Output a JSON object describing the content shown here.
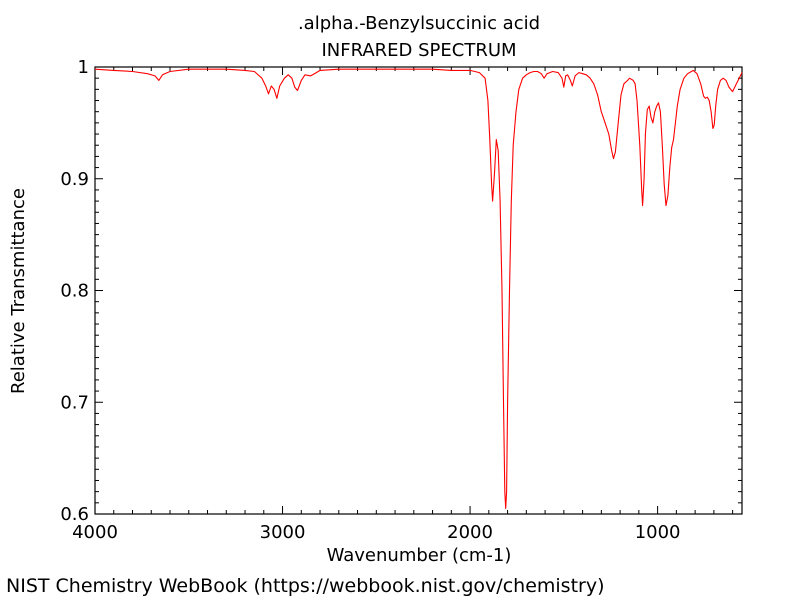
{
  "chart_data": {
    "type": "line",
    "title": ".alpha.-Benzylsuccinic acid",
    "subtitle": "INFRARED SPECTRUM",
    "xlabel": "Wavenumber (cm-1)",
    "ylabel": "Relative Transmittance",
    "xlim": [
      4000,
      550
    ],
    "ylim": [
      0.6,
      1.0
    ],
    "x_inverted": true,
    "xticks": [
      4000,
      3000,
      2000,
      1000
    ],
    "xtick_labels": [
      "4000",
      "3000",
      "2000",
      "1000"
    ],
    "yticks": [
      0.6,
      0.7,
      0.8,
      0.9,
      1.0
    ],
    "ytick_labels": [
      "0.6",
      "0.7",
      "0.8",
      "0.9",
      "1"
    ],
    "grid": false,
    "line_color": "#ff0000",
    "series": [
      {
        "points": [
          [
            4000,
            0.998
          ],
          [
            3900,
            0.997
          ],
          [
            3800,
            0.996
          ],
          [
            3720,
            0.994
          ],
          [
            3680,
            0.992
          ],
          [
            3660,
            0.988
          ],
          [
            3640,
            0.993
          ],
          [
            3600,
            0.996
          ],
          [
            3500,
            0.998
          ],
          [
            3400,
            0.998
          ],
          [
            3300,
            0.998
          ],
          [
            3200,
            0.997
          ],
          [
            3150,
            0.996
          ],
          [
            3110,
            0.99
          ],
          [
            3090,
            0.983
          ],
          [
            3075,
            0.976
          ],
          [
            3060,
            0.983
          ],
          [
            3045,
            0.98
          ],
          [
            3030,
            0.972
          ],
          [
            3015,
            0.983
          ],
          [
            2990,
            0.99
          ],
          [
            2970,
            0.993
          ],
          [
            2950,
            0.99
          ],
          [
            2935,
            0.982
          ],
          [
            2920,
            0.979
          ],
          [
            2900,
            0.988
          ],
          [
            2880,
            0.993
          ],
          [
            2850,
            0.992
          ],
          [
            2820,
            0.995
          ],
          [
            2800,
            0.997
          ],
          [
            2700,
            0.998
          ],
          [
            2600,
            0.998
          ],
          [
            2500,
            0.998
          ],
          [
            2400,
            0.998
          ],
          [
            2300,
            0.998
          ],
          [
            2200,
            0.998
          ],
          [
            2100,
            0.997
          ],
          [
            2000,
            0.997
          ],
          [
            1950,
            0.995
          ],
          [
            1920,
            0.99
          ],
          [
            1905,
            0.97
          ],
          [
            1895,
            0.935
          ],
          [
            1885,
            0.895
          ],
          [
            1880,
            0.88
          ],
          [
            1870,
            0.905
          ],
          [
            1860,
            0.935
          ],
          [
            1850,
            0.925
          ],
          [
            1840,
            0.88
          ],
          [
            1830,
            0.8
          ],
          [
            1822,
            0.7
          ],
          [
            1815,
            0.62
          ],
          [
            1810,
            0.605
          ],
          [
            1805,
            0.62
          ],
          [
            1800,
            0.7
          ],
          [
            1790,
            0.8
          ],
          [
            1780,
            0.88
          ],
          [
            1770,
            0.93
          ],
          [
            1755,
            0.96
          ],
          [
            1740,
            0.98
          ],
          [
            1720,
            0.99
          ],
          [
            1700,
            0.993
          ],
          [
            1680,
            0.995
          ],
          [
            1660,
            0.996
          ],
          [
            1640,
            0.996
          ],
          [
            1620,
            0.994
          ],
          [
            1605,
            0.99
          ],
          [
            1590,
            0.994
          ],
          [
            1560,
            0.996
          ],
          [
            1530,
            0.995
          ],
          [
            1510,
            0.99
          ],
          [
            1500,
            0.982
          ],
          [
            1490,
            0.992
          ],
          [
            1480,
            0.993
          ],
          [
            1465,
            0.988
          ],
          [
            1455,
            0.983
          ],
          [
            1440,
            0.992
          ],
          [
            1420,
            0.995
          ],
          [
            1400,
            0.994
          ],
          [
            1380,
            0.993
          ],
          [
            1360,
            0.99
          ],
          [
            1340,
            0.985
          ],
          [
            1320,
            0.975
          ],
          [
            1300,
            0.96
          ],
          [
            1280,
            0.95
          ],
          [
            1260,
            0.94
          ],
          [
            1245,
            0.925
          ],
          [
            1235,
            0.918
          ],
          [
            1225,
            0.924
          ],
          [
            1210,
            0.95
          ],
          [
            1195,
            0.975
          ],
          [
            1180,
            0.985
          ],
          [
            1160,
            0.988
          ],
          [
            1150,
            0.99
          ],
          [
            1130,
            0.988
          ],
          [
            1120,
            0.985
          ],
          [
            1110,
            0.97
          ],
          [
            1095,
            0.93
          ],
          [
            1085,
            0.89
          ],
          [
            1080,
            0.876
          ],
          [
            1072,
            0.9
          ],
          [
            1065,
            0.94
          ],
          [
            1055,
            0.962
          ],
          [
            1045,
            0.965
          ],
          [
            1035,
            0.955
          ],
          [
            1025,
            0.95
          ],
          [
            1015,
            0.96
          ],
          [
            1005,
            0.965
          ],
          [
            995,
            0.968
          ],
          [
            985,
            0.96
          ],
          [
            975,
            0.93
          ],
          [
            965,
            0.895
          ],
          [
            955,
            0.876
          ],
          [
            945,
            0.885
          ],
          [
            935,
            0.91
          ],
          [
            925,
            0.928
          ],
          [
            915,
            0.935
          ],
          [
            905,
            0.95
          ],
          [
            895,
            0.965
          ],
          [
            880,
            0.98
          ],
          [
            860,
            0.99
          ],
          [
            840,
            0.994
          ],
          [
            820,
            0.996
          ],
          [
            810,
            0.997
          ],
          [
            790,
            0.994
          ],
          [
            770,
            0.985
          ],
          [
            755,
            0.974
          ],
          [
            745,
            0.972
          ],
          [
            735,
            0.973
          ],
          [
            725,
            0.97
          ],
          [
            715,
            0.96
          ],
          [
            705,
            0.945
          ],
          [
            698,
            0.948
          ],
          [
            690,
            0.965
          ],
          [
            680,
            0.98
          ],
          [
            665,
            0.988
          ],
          [
            650,
            0.99
          ],
          [
            635,
            0.988
          ],
          [
            620,
            0.982
          ],
          [
            600,
            0.978
          ],
          [
            580,
            0.985
          ],
          [
            565,
            0.99
          ],
          [
            550,
            0.995
          ]
        ]
      }
    ]
  },
  "footer": {
    "source": "NIST Chemistry WebBook (https://webbook.nist.gov/chemistry)"
  }
}
